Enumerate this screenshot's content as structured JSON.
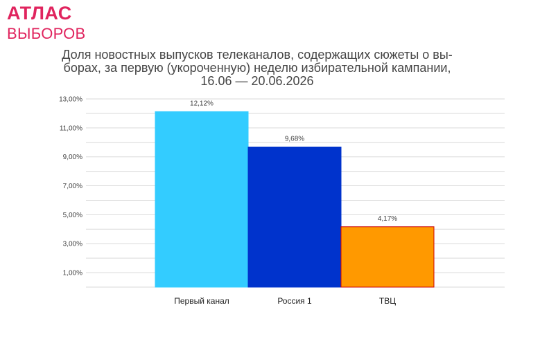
{
  "logo": {
    "line1": "АТЛАС",
    "line2": "ВЫБОРОВ",
    "color": "#e0245e"
  },
  "chart_data": {
    "type": "bar",
    "title": [
      "Доля новостных выпусков телеканалов, содержащих сюжеты о вы-",
      "борах, за первую (укороченную) неделю избирательной кампании,",
      "16.06 — 20.06.2026"
    ],
    "xlabel": "",
    "ylabel": "",
    "categories": [
      "Первый канал",
      "Россия 1",
      "ТВЦ"
    ],
    "values": [
      12.12,
      9.68,
      4.17
    ],
    "data_labels": [
      "12,12%",
      "9,68%",
      "4,17%"
    ],
    "colors": [
      "#33ccff",
      "#0033cc",
      "#ff9900"
    ],
    "bar_border_colors": [
      "#33ccff",
      "#0033cc",
      "#cc0000"
    ],
    "ylim": [
      0,
      13
    ],
    "yticks": [
      1,
      3,
      5,
      7,
      9,
      11,
      13
    ],
    "ytick_labels": [
      "1,00%",
      "3,00%",
      "5,00%",
      "7,00%",
      "9,00%",
      "11,00%",
      "13,00%"
    ],
    "grid": true,
    "legend": "none"
  }
}
